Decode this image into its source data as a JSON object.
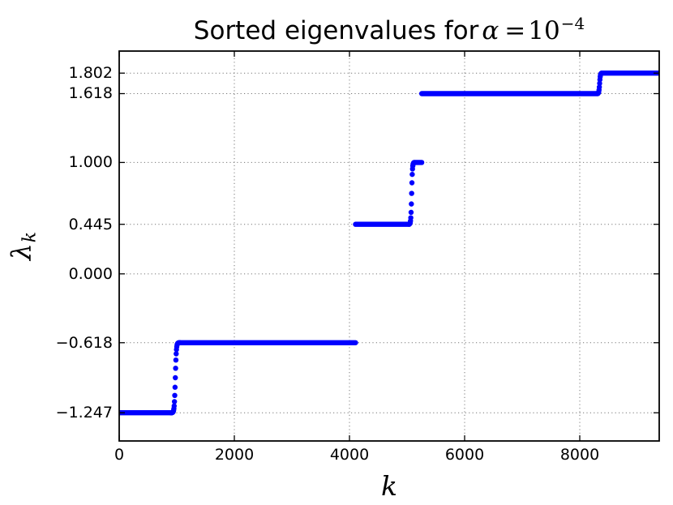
{
  "figure": {
    "title": {
      "prefix": "Sorted eigenvalues for",
      "alpha": "α",
      "equals": "=",
      "base": "10",
      "exponent": "−4"
    },
    "xlabel": "k",
    "ylabel": {
      "symbol": "λ",
      "subscript": "k"
    }
  },
  "chart_data": {
    "type": "scatter",
    "title": "Sorted eigenvalues for α = 10^−4",
    "xlabel": "k",
    "ylabel": "λ_k",
    "marker": {
      "color": "#0000ff",
      "size": 6.4
    },
    "grid": {
      "on": true,
      "style": "dotted",
      "color": "#777777"
    },
    "legend": null,
    "xlim": [
      0,
      9380
    ],
    "ylim": [
      -1.5,
      2.0
    ],
    "xticks": [
      {
        "value": 0,
        "label": "0"
      },
      {
        "value": 2000,
        "label": "2000"
      },
      {
        "value": 4000,
        "label": "4000"
      },
      {
        "value": 6000,
        "label": "6000"
      },
      {
        "value": 8000,
        "label": "8000"
      }
    ],
    "yticks": [
      {
        "value": 1.802,
        "label": "1.802"
      },
      {
        "value": 1.618,
        "label": "1.618"
      },
      {
        "value": 1.0,
        "label": "1.000"
      },
      {
        "value": 0.445,
        "label": "0.445"
      },
      {
        "value": 0.0,
        "label": "0.000"
      },
      {
        "value": -0.618,
        "label": "−0.618"
      },
      {
        "value": -1.247,
        "label": "−1.247"
      }
    ],
    "plateau_values": [
      -1.247,
      -0.618,
      0.445,
      1.0,
      1.618,
      1.802
    ],
    "segments": [
      {
        "type": "plateau",
        "k_start": 0,
        "k_end": 900,
        "value": -1.247
      },
      {
        "type": "scurve",
        "k_start": 900,
        "k_end": 1055,
        "from": -1.247,
        "to": -0.618,
        "center": 975,
        "width": 18
      },
      {
        "type": "plateau",
        "k_start": 1055,
        "k_end": 4105,
        "value": -0.618
      },
      {
        "type": "plateau",
        "k_start": 4105,
        "k_end": 5035,
        "value": 0.445
      },
      {
        "type": "scurve",
        "k_start": 5035,
        "k_end": 5125,
        "from": 0.445,
        "to": 1.0,
        "center": 5080,
        "width": 14
      },
      {
        "type": "plateau",
        "k_start": 5125,
        "k_end": 5255,
        "value": 1.0
      },
      {
        "type": "plateau",
        "k_start": 5255,
        "k_end": 8310,
        "value": 1.618
      },
      {
        "type": "scurve",
        "k_start": 8310,
        "k_end": 8380,
        "from": 1.618,
        "to": 1.802,
        "center": 8345,
        "width": 13
      },
      {
        "type": "plateau",
        "k_start": 8380,
        "k_end": 9370,
        "value": 1.802
      }
    ],
    "scurve_sample_step": 5
  }
}
